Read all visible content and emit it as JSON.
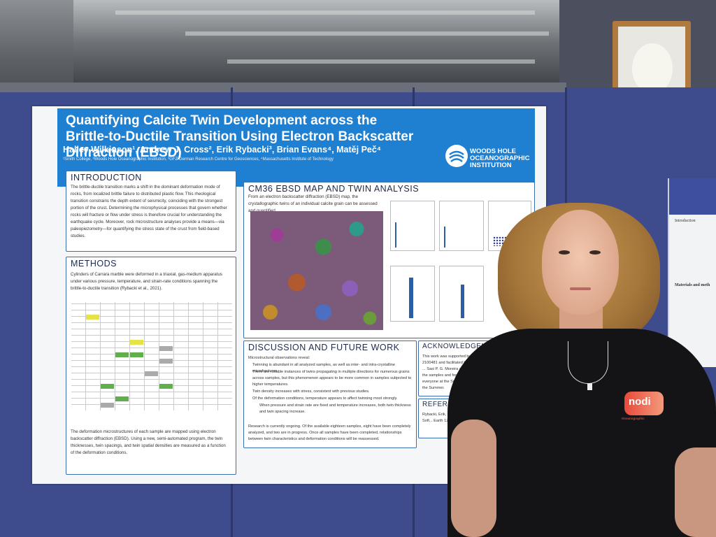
{
  "poster": {
    "title": "Quantifying Calcite Twin Development across the Brittle-to-Ductile Transition Using Electron Backscatter Diffraction (EBSD)",
    "authors": "Halley Wilkinson¹, Andrew J. Cross², Erik Rybacki³, Brian Evans⁴, Matěj Peč⁴",
    "affiliations": "¹Smith College, ²Woods Hole Oceanographic Institution, ³GFZ German Research Centre for Geosciences, ⁴Massachusetts Institute of Technology",
    "institution_line1": "WOODS HOLE",
    "institution_line2": "OCEANOGRAPHIC",
    "institution_line3": "INSTITUTION",
    "introduction": {
      "heading": "INTRODUCTION",
      "text": "The brittle-ductile transition marks a shift in the dominant deformation mode of rocks, from localized brittle failure to distributed plastic flow. This rheological transition constrains the depth extent of seismicity, coinciding with the strongest portion of the crust. Determining the microphysical processes that govern whether rocks will fracture or flow under stress is therefore crucial for understanding the earthquake cycle. Moreover, rock microstructure analyses provide a means—via paleopiezometry—for quantifying the stress state of the crust from field-based studies."
    },
    "methods": {
      "heading": "METHODS",
      "text1": "Cylinders of Carrara marble were deformed in a triaxial, gas-medium apparatus under various pressure, temperature, and strain-rate conditions spanning the brittle-to-ductile transition (Rybacki et al., 2021).",
      "text2": "The deformation microstructures of each sample are mapped using electron backscatter diffraction (EBSD). Using a new, semi-automated program, the twin thicknesses, twin spacings, and twin spatial densities are measured as a function of the deformation conditions."
    },
    "analysis": {
      "heading": "CM36 EBSD MAP AND TWIN ANALYSIS",
      "text": "From an electron backscatter diffraction (EBSD) map, the crystallographic twins of an individual calcite grain can be assessed and quantified."
    },
    "discussion": {
      "heading": "DISCUSSION AND FUTURE WORK",
      "intro": "Microstructural observations reveal:",
      "bullets": [
        "Twinning is abundant in all analyzed samples, as well as inter- and intra-crystalline microfractures.",
        "There are notable instances of twins propagating in multiple directions for numerous grains across samples, but this phenomenon appears to be more common in samples subjected to higher temperatures.",
        "Twin density increases with stress, consistent with previous studies.",
        "Of the deformation conditions, temperature appears to affect twinning most strongly."
      ],
      "sub_bullet": "When pressure and strain rate are fixed and temperature increases, both twin thickness and twin spacing increase.",
      "closing": "Research is currently ongoing. Of the available eighteen samples, eight have been completely analyzed, and two are in progress. Once all samples have been completed, relationships between twin characteristics and deformation conditions will be reassessed."
    },
    "acknowledgements": {
      "heading": "ACKNOWLEDGEME",
      "text": "This work was supported by the US ... 2100481 and facilitated by the WHOI ... Sasi P. G. Moreira at the GFZ ... the samples and for aquiring ... give to everyone at the Smith ... throughout the Summer."
    },
    "references": {
      "heading": "REFEREN",
      "text": "Rybacki, Erik, Le N... Hardening and Soft... Earth 126 (2021)."
    }
  },
  "side_poster": {
    "heading1": "Introduction",
    "heading2": "Materials and meth"
  },
  "shirt": {
    "logo_text": "nodi",
    "small_text": "Oceanographic"
  }
}
